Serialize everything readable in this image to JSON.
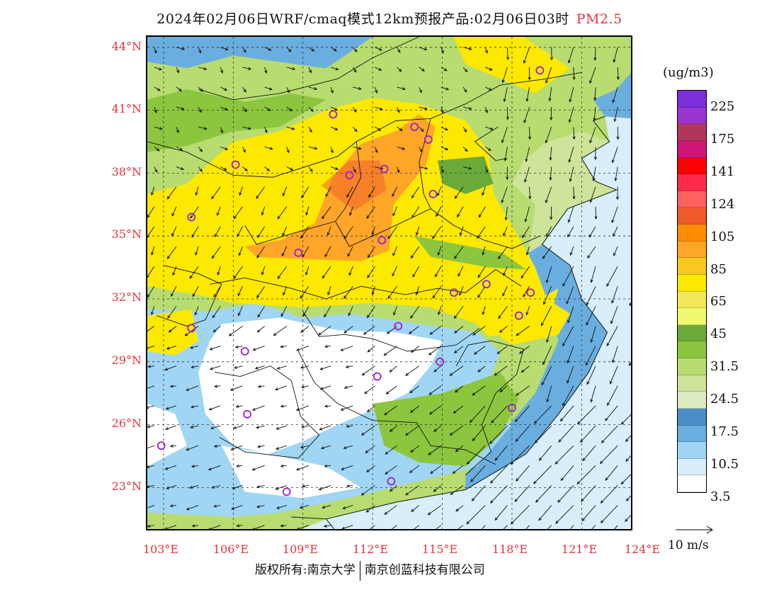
{
  "title": {
    "main": "2024年02月06日WRF/cmaq模式12km预报产品:02月06日03时",
    "species": "PM2.5"
  },
  "lat_labels": [
    "44°N",
    "41°N",
    "38°N",
    "35°N",
    "32°N",
    "29°N",
    "26°N",
    "23°N"
  ],
  "lon_labels": [
    "103°E",
    "106°E",
    "109°E",
    "112°E",
    "115°E",
    "118°E",
    "121°E",
    "124°E"
  ],
  "colorbar": {
    "unit": "(ug/m3)",
    "labels": [
      "225",
      "175",
      "141",
      "124",
      "105",
      "85",
      "65",
      "45",
      "31.5",
      "24.5",
      "17.5",
      "10.5",
      "3.5"
    ],
    "colors": [
      "#7b2fd8",
      "#9a35cf",
      "#b0365a",
      "#d0157a",
      "#ff0000",
      "#ff2a4a",
      "#ff6060",
      "#f05a28",
      "#ff8c00",
      "#ffa628",
      "#f8c81e",
      "#fde800",
      "#f2e85a",
      "#eefa70",
      "#6aaa3a",
      "#8cc63e",
      "#b8dc70",
      "#cde49a",
      "#dcecc0",
      "#4a8ec8",
      "#6aaee0",
      "#a0d6f4",
      "#d8eefa",
      "#ffffff"
    ]
  },
  "wind_reference": "10 m/s",
  "footer": {
    "left": "版权所有:南京大学",
    "right": "南京创蓝科技有限公司"
  },
  "stations": [
    [
      119.2,
      42.9
    ],
    [
      110.3,
      40.8
    ],
    [
      113.8,
      40.2
    ],
    [
      114.4,
      39.6
    ],
    [
      106.1,
      38.4
    ],
    [
      111.0,
      37.9
    ],
    [
      112.5,
      38.2
    ],
    [
      114.6,
      37.0
    ],
    [
      104.2,
      35.9
    ],
    [
      108.8,
      34.2
    ],
    [
      112.4,
      34.8
    ],
    [
      115.5,
      32.3
    ],
    [
      116.9,
      32.7
    ],
    [
      118.8,
      32.3
    ],
    [
      118.3,
      31.2
    ],
    [
      104.2,
      30.6
    ],
    [
      113.1,
      30.7
    ],
    [
      106.5,
      29.5
    ],
    [
      114.9,
      29.0
    ],
    [
      112.2,
      28.3
    ],
    [
      106.6,
      26.5
    ],
    [
      118.0,
      26.8
    ],
    [
      102.9,
      25.0
    ],
    [
      108.3,
      22.8
    ],
    [
      112.8,
      23.3
    ]
  ]
}
